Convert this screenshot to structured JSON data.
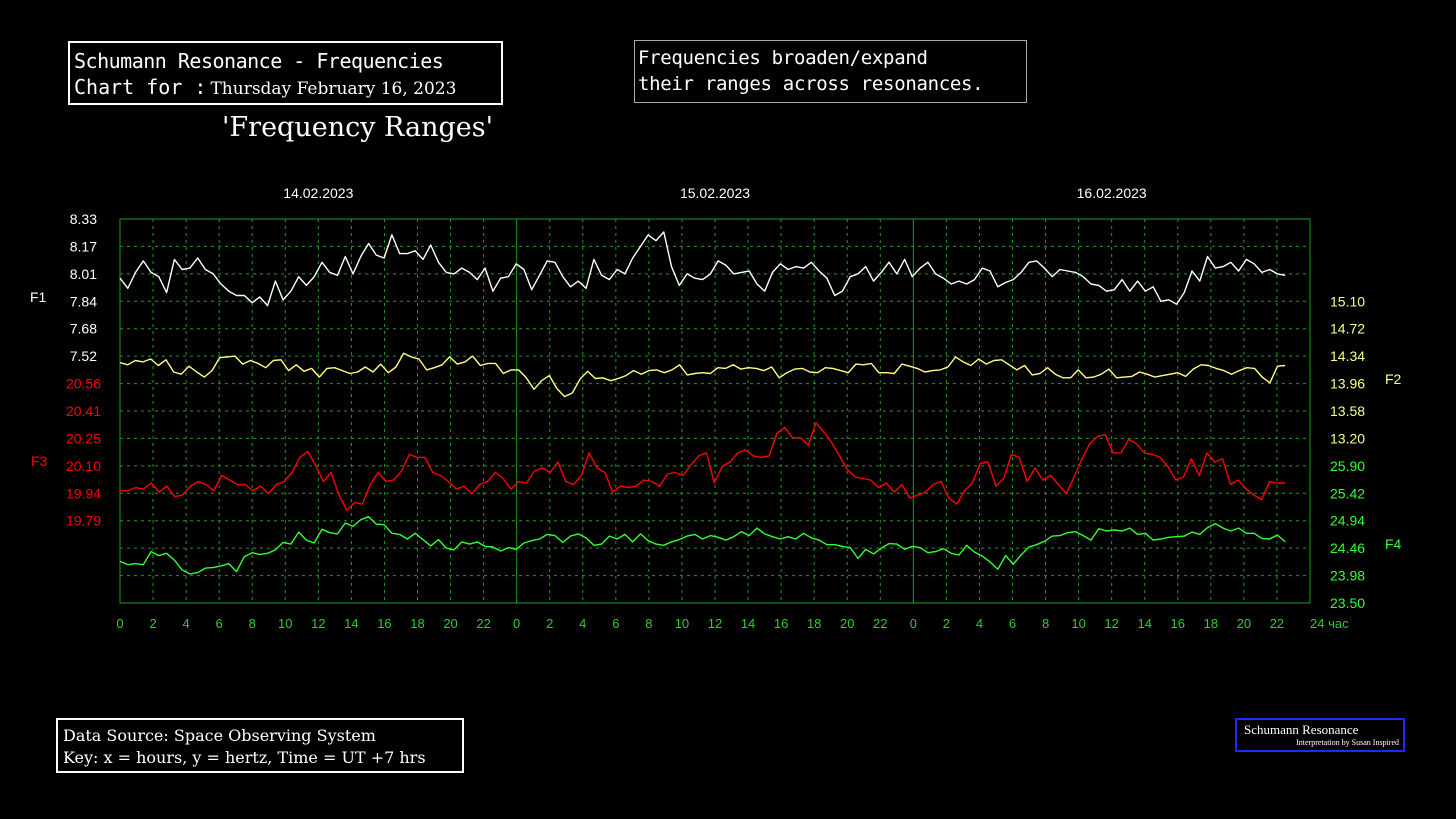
{
  "header": {
    "title_line1": "Schumann Resonance - Frequencies",
    "title_line2_prefix": "Chart for :",
    "title_date": "Thursday February 16, 2023",
    "subtitle": "'Frequency Ranges'",
    "note_line1": "Frequencies broaden/expand",
    "note_line2": "their ranges across resonances."
  },
  "footer": {
    "source_line1": "Data Source: Space Observing System",
    "source_line2": "Key: x = hours, y = hertz, Time = UT +7 hrs",
    "badge_title": "Schumann Resonance",
    "badge_subtitle": "Interpretation by Susan Inspired"
  },
  "colors": {
    "background": "#000000",
    "grid": "#1f9a1f",
    "axis_text": "#2ecc2e",
    "f1": "#ffffff",
    "f2": "#ffff80",
    "f3": "#ff0000",
    "f4": "#33ff33",
    "badge_border": "#1a2bff"
  },
  "chart_data": {
    "type": "line",
    "day_labels": [
      "14.02.2023",
      "15.02.2023",
      "16.02.2023"
    ],
    "x_ticks": [
      "0",
      "2",
      "4",
      "6",
      "8",
      "10",
      "12",
      "14",
      "16",
      "18",
      "20",
      "22",
      "0",
      "2",
      "4",
      "6",
      "8",
      "10",
      "12",
      "14",
      "16",
      "18",
      "20",
      "22",
      "0",
      "2",
      "4",
      "6",
      "8",
      "10",
      "12",
      "14",
      "16",
      "18",
      "20",
      "22",
      "24 час"
    ],
    "xlim_hours": [
      0,
      72
    ],
    "grid": true,
    "left_axis": {
      "f1_ticks": [
        "8.33",
        "8.17",
        "8.01",
        "7.84",
        "7.68",
        "7.52"
      ],
      "f3_ticks": [
        "20.56",
        "20.41",
        "20.25",
        "20.10",
        "19.94",
        "19.79"
      ]
    },
    "right_axis": {
      "f2_ticks": [
        "15.10",
        "14.72",
        "14.34",
        "13.96",
        "13.58",
        "13.20"
      ],
      "f4_ticks": [
        "25.90",
        "25.42",
        "24.94",
        "24.46",
        "23.98",
        "23.50"
      ]
    },
    "series": [
      {
        "name": "F1",
        "ylim": [
          7.19,
          8.33
        ],
        "values": [
          7.92,
          7.85,
          7.96,
          8.04,
          7.96,
          7.93,
          7.82,
          8.05,
          7.98,
          7.99,
          8.06,
          7.98,
          7.95,
          7.88,
          7.83,
          7.8,
          7.8,
          7.75,
          7.79,
          7.73,
          7.9,
          7.77,
          7.83,
          7.93,
          7.87,
          7.93,
          8.03,
          7.96,
          7.94,
          8.07,
          7.95,
          8.07,
          8.16,
          8.08,
          8.06,
          8.22,
          8.09,
          8.09,
          8.11,
          8.05,
          8.15,
          8.03,
          7.96,
          7.95,
          7.99,
          7.96,
          7.91,
          7.99,
          7.83,
          7.92,
          7.93,
          8.02,
          7.98,
          7.84,
          7.94,
          8.04,
          8.03,
          7.93,
          7.86,
          7.9,
          7.85,
          8.05,
          7.94,
          7.91,
          7.98,
          7.95,
          8.06,
          8.14,
          8.22,
          8.18,
          8.24,
          8.0,
          7.87,
          7.95,
          7.92,
          7.91,
          7.95,
          8.04,
          8.01,
          7.95,
          7.96,
          7.97,
          7.88,
          7.83,
          7.96,
          8.02,
          7.98,
          8.0,
          7.99,
          8.03,
          7.97,
          7.92,
          7.8,
          7.83,
          7.93,
          7.95,
          8.0,
          7.9,
          7.96,
          8.03,
          7.95,
          8.05,
          7.93,
          7.99,
          8.03,
          7.95,
          7.92,
          7.88,
          7.9,
          7.88,
          7.91,
          7.99,
          7.97,
          7.86,
          7.89,
          7.91,
          7.96,
          8.03,
          8.04,
          7.99,
          7.93,
          7.98,
          7.97,
          7.96,
          7.93,
          7.88,
          7.87,
          7.83,
          7.84,
          7.91,
          7.83,
          7.9,
          7.83,
          7.86,
          7.76,
          7.77,
          7.74,
          7.82,
          7.97,
          7.9,
          8.07,
          7.99,
          8.0,
          8.03,
          7.97,
          8.05,
          8.02,
          7.96,
          7.98,
          7.95,
          7.94
        ]
      },
      {
        "name": "F2",
        "ylim": [
          13.2,
          15.1
        ],
        "values": [
          14.25,
          14.22,
          14.28,
          14.26,
          14.3,
          14.21,
          14.29,
          14.12,
          14.09,
          14.2,
          14.12,
          14.05,
          14.14,
          14.32,
          14.33,
          14.34,
          14.23,
          14.28,
          14.24,
          14.18,
          14.28,
          14.29,
          14.14,
          14.22,
          14.13,
          14.17,
          14.05,
          14.17,
          14.18,
          14.14,
          14.1,
          14.12,
          14.19,
          14.12,
          14.23,
          14.11,
          14.19,
          14.38,
          14.33,
          14.3,
          14.15,
          14.18,
          14.22,
          14.33,
          14.23,
          14.26,
          14.34,
          14.21,
          14.24,
          14.24,
          14.1,
          14.15,
          14.15,
          14.04,
          13.88,
          14.0,
          14.07,
          13.89,
          13.78,
          13.83,
          14.02,
          14.13,
          14.03,
          14.04,
          14.0,
          14.03,
          14.07,
          14.14,
          14.09,
          14.14,
          14.15,
          14.11,
          14.15,
          14.22,
          14.08,
          14.1,
          14.11,
          14.1,
          14.18,
          14.17,
          14.22,
          14.16,
          14.18,
          14.17,
          14.14,
          14.19,
          14.04,
          14.11,
          14.16,
          14.17,
          14.12,
          14.11,
          14.18,
          14.17,
          14.14,
          14.11,
          14.23,
          14.22,
          14.24,
          14.11,
          14.11,
          14.1,
          14.23,
          14.2,
          14.17,
          14.12,
          14.14,
          14.15,
          14.19,
          14.33,
          14.26,
          14.21,
          14.3,
          14.23,
          14.28,
          14.29,
          14.22,
          14.15,
          14.21,
          14.08,
          14.1,
          14.18,
          14.09,
          14.04,
          14.04,
          14.15,
          14.04,
          14.05,
          14.09,
          14.16,
          14.04,
          14.05,
          14.06,
          14.12,
          14.09,
          14.05,
          14.07,
          14.09,
          14.11,
          14.06,
          14.16,
          14.22,
          14.21,
          14.17,
          14.14,
          14.09,
          14.14,
          14.18,
          14.17,
          14.05,
          13.97,
          14.2,
          14.21
        ]
      },
      {
        "name": "F3",
        "ylim": [
          19.79,
          20.7
        ],
        "values": [
          19.99,
          19.99,
          20.01,
          20.0,
          20.04,
          19.98,
          20.02,
          19.95,
          19.96,
          20.02,
          20.05,
          20.03,
          19.99,
          20.09,
          20.06,
          20.03,
          20.03,
          19.99,
          20.02,
          19.97,
          20.03,
          20.05,
          20.11,
          20.21,
          20.25,
          20.16,
          20.05,
          20.11,
          19.96,
          19.86,
          19.91,
          19.9,
          20.03,
          20.11,
          20.05,
          20.06,
          20.12,
          20.23,
          20.21,
          20.21,
          20.11,
          20.09,
          20.05,
          20.0,
          20.02,
          19.97,
          20.03,
          20.05,
          20.11,
          20.07,
          20.0,
          20.05,
          20.04,
          20.12,
          20.14,
          20.11,
          20.18,
          20.05,
          20.03,
          20.09,
          20.24,
          20.14,
          20.11,
          19.98,
          20.02,
          20.01,
          20.02,
          20.06,
          20.05,
          20.02,
          20.1,
          20.11,
          20.09,
          20.16,
          20.22,
          20.24,
          20.04,
          20.15,
          20.18,
          20.24,
          20.26,
          20.22,
          20.21,
          20.22,
          20.37,
          20.41,
          20.34,
          20.34,
          20.29,
          20.44,
          20.38,
          20.31,
          20.22,
          20.13,
          20.08,
          20.07,
          20.06,
          20.01,
          20.04,
          19.98,
          20.03,
          19.94,
          19.96,
          19.98,
          20.03,
          20.05,
          19.94,
          19.9,
          19.99,
          20.04,
          20.17,
          20.18,
          20.02,
          20.07,
          20.23,
          20.21,
          20.05,
          20.14,
          20.06,
          20.09,
          20.03,
          19.97,
          20.08,
          20.2,
          20.3,
          20.35,
          20.36,
          20.24,
          20.24,
          20.33,
          20.3,
          20.24,
          20.23,
          20.21,
          20.15,
          20.06,
          20.08,
          20.2,
          20.09,
          20.24,
          20.18,
          20.2,
          20.03,
          20.06,
          20.0,
          19.96,
          19.93,
          20.05,
          20.04,
          20.04
        ]
      },
      {
        "name": "F4",
        "ylim": [
          23.5,
          25.9
        ],
        "values": [
          24.23,
          24.17,
          24.19,
          24.17,
          24.4,
          24.33,
          24.37,
          24.25,
          24.08,
          24.01,
          24.03,
          24.11,
          24.12,
          24.15,
          24.19,
          24.05,
          24.31,
          24.38,
          24.35,
          24.37,
          24.43,
          24.56,
          24.53,
          24.74,
          24.6,
          24.55,
          24.79,
          24.73,
          24.71,
          24.9,
          24.84,
          24.96,
          25.01,
          24.88,
          24.87,
          24.72,
          24.7,
          24.62,
          24.72,
          24.61,
          24.5,
          24.61,
          24.46,
          24.43,
          24.57,
          24.53,
          24.57,
          24.49,
          24.48,
          24.41,
          24.47,
          24.44,
          24.55,
          24.59,
          24.62,
          24.7,
          24.68,
          24.56,
          24.67,
          24.71,
          24.64,
          24.51,
          24.53,
          24.67,
          24.62,
          24.7,
          24.57,
          24.71,
          24.59,
          24.53,
          24.51,
          24.57,
          24.61,
          24.67,
          24.7,
          24.62,
          24.68,
          24.65,
          24.6,
          24.66,
          24.75,
          24.68,
          24.81,
          24.71,
          24.66,
          24.62,
          24.66,
          24.62,
          24.72,
          24.64,
          24.6,
          24.52,
          24.52,
          24.49,
          24.47,
          24.28,
          24.44,
          24.36,
          24.46,
          24.54,
          24.53,
          24.44,
          24.49,
          24.47,
          24.38,
          24.4,
          24.45,
          24.37,
          24.34,
          24.51,
          24.39,
          24.32,
          24.22,
          24.09,
          24.33,
          24.18,
          24.34,
          24.48,
          24.52,
          24.58,
          24.67,
          24.68,
          24.73,
          24.75,
          24.68,
          24.6,
          24.8,
          24.76,
          24.78,
          24.76,
          24.81,
          24.7,
          24.72,
          24.6,
          24.62,
          24.65,
          24.66,
          24.67,
          24.74,
          24.7,
          24.82,
          24.89,
          24.81,
          24.76,
          24.81,
          24.72,
          24.72,
          24.63,
          24.62,
          24.69,
          24.57
        ]
      }
    ]
  }
}
